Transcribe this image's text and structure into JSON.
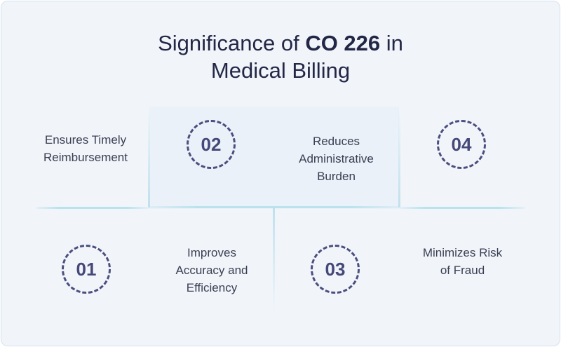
{
  "title": {
    "prefix": "Significance of ",
    "highlight": "CO 226",
    "suffix": " in",
    "line2": "Medical Billing"
  },
  "items": [
    {
      "number": "01",
      "label_lines": [
        "Ensures Timely",
        "Reimbursement"
      ]
    },
    {
      "number": "02",
      "label_lines": [
        "Improves",
        "Accuracy and",
        "Efficiency"
      ]
    },
    {
      "number": "03",
      "label_lines": [
        "Reduces",
        "Administrative",
        "Burden"
      ]
    },
    {
      "number": "04",
      "label_lines": [
        "Minimizes Risk",
        "of Fraud"
      ]
    }
  ],
  "colors": {
    "title": "#232746",
    "badge_border": "#4c4f7e",
    "badge_text": "#454878",
    "divider": "#b9e2ec",
    "background": "#f1f5fa"
  }
}
